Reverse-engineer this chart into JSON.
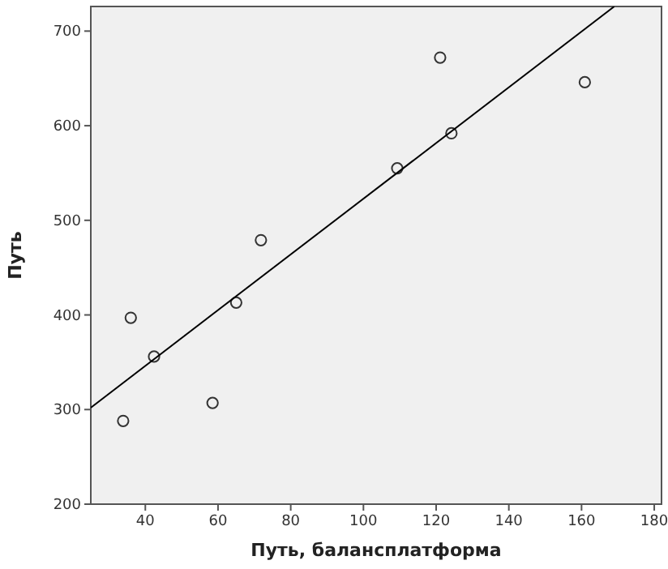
{
  "chart_data": {
    "type": "scatter",
    "xlabel": "Путь, балансплатформа",
    "ylabel": "Путь",
    "xlim": [
      25,
      182
    ],
    "ylim": [
      200,
      726
    ],
    "xticks": [
      40,
      60,
      80,
      100,
      120,
      140,
      160,
      180
    ],
    "yticks": [
      200,
      300,
      400,
      500,
      600,
      700
    ],
    "grid": false,
    "marker": "circle",
    "series": [
      {
        "color": "#333333",
        "x": [
          33.9,
          36,
          42.4,
          58.5,
          65,
          71.8,
          109.3,
          121.1,
          124.2,
          160.9
        ],
        "values": [
          288,
          397,
          356,
          307,
          413,
          479,
          555,
          672,
          592,
          646
        ]
      },
      {
        "type": "line",
        "color": "#000000",
        "marker": "none",
        "x": [
          25,
          169
        ],
        "values": [
          302,
          726
        ]
      }
    ]
  }
}
